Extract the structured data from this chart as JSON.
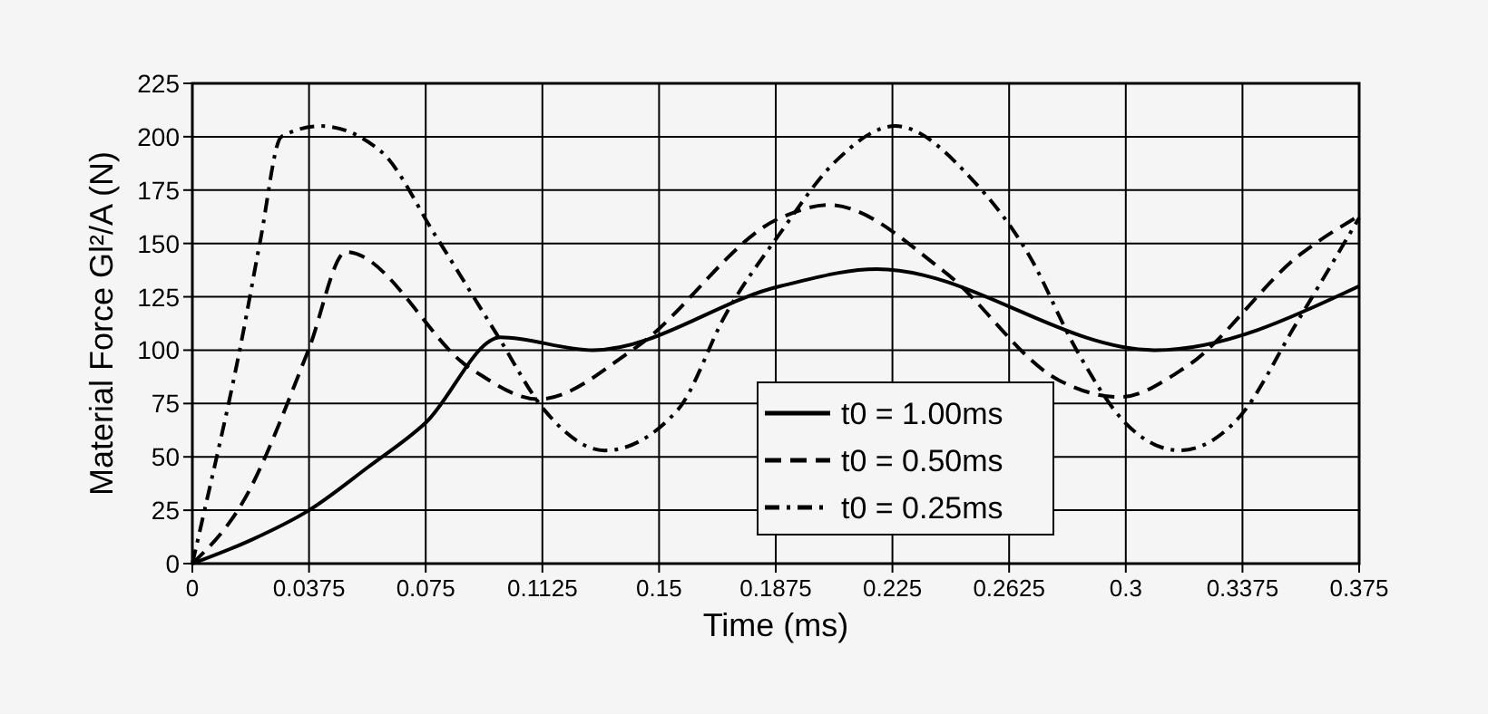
{
  "chart_data": {
    "type": "line",
    "xlabel": "Time (ms)",
    "ylabel": "Material Force Gl²/A (N)",
    "xlim": [
      0,
      0.375
    ],
    "ylim": [
      0,
      225
    ],
    "xticks": [
      0,
      0.0375,
      0.075,
      0.1125,
      0.15,
      0.1875,
      0.225,
      0.2625,
      0.3,
      0.3375,
      0.375
    ],
    "yticks": [
      0,
      25,
      50,
      75,
      100,
      125,
      150,
      175,
      200,
      225
    ],
    "grid": true,
    "legend": "bottom",
    "series": [
      {
        "name": "t0 = 1.00ms",
        "color": "#000000",
        "line_style": "solid",
        "x": [
          0,
          0.0188,
          0.0375,
          0.0563,
          0.075,
          0.0991,
          0.1287,
          0.189,
          0.22,
          0.3095,
          0.375
        ],
        "values": [
          0,
          11,
          25,
          45,
          66,
          106,
          100,
          130,
          138,
          100,
          130
        ]
      },
      {
        "name": "t0 = 0.50ms",
        "color": "#000000",
        "line_style": "dashed",
        "x": [
          0,
          0.0159,
          0.0373,
          0.0494,
          0.0898,
          0.1112,
          0.1423,
          0.189,
          0.2045,
          0.2415,
          0.2784,
          0.298,
          0.3192,
          0.3562,
          0.375
        ],
        "values": [
          0,
          28,
          100,
          146,
          91,
          77,
          101,
          162,
          168,
          137,
          86,
          78,
          92,
          145,
          163
        ]
      },
      {
        "name": "t0 = 0.25ms",
        "color": "#000000",
        "line_style": "dashdot",
        "x": [
          0,
          0.0033,
          0.0159,
          0.0218,
          0.0286,
          0.0412,
          0.0607,
          0.078,
          0.0976,
          0.1131,
          0.1326,
          0.156,
          0.1715,
          0.189,
          0.2064,
          0.2259,
          0.2512,
          0.2687,
          0.2842,
          0.2998,
          0.3173,
          0.3367,
          0.3542,
          0.375
        ],
        "values": [
          0,
          21,
          105,
          151,
          200,
          205,
          193,
          154,
          108,
          72,
          53,
          72,
          117,
          155,
          188,
          205,
          179,
          145,
          100,
          66,
          53,
          69,
          111,
          162
        ]
      }
    ]
  }
}
